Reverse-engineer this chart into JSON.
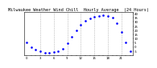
{
  "title": "Milwaukee Weather Wind Chill  Hourly Average  (24 Hours)",
  "hours": [
    0,
    1,
    2,
    3,
    4,
    5,
    6,
    7,
    8,
    9,
    10,
    11,
    12,
    13,
    14,
    15,
    16,
    17,
    18,
    19,
    20,
    21,
    22,
    23
  ],
  "wind_chill": [
    5,
    0,
    -3,
    -5,
    -7,
    -7,
    -6,
    -5,
    -2,
    4,
    12,
    20,
    27,
    31,
    34,
    36,
    37,
    38,
    37,
    35,
    28,
    18,
    5,
    -5
  ],
  "dot_color": "#0000ff",
  "bg_color": "#ffffff",
  "grid_color": "#999999",
  "ylim": [
    -10,
    42
  ],
  "xlim": [
    -0.5,
    23.5
  ],
  "grid_hours": [
    3,
    6,
    9,
    12,
    15,
    18,
    21
  ],
  "y_ticks": [
    -5,
    0,
    5,
    10,
    15,
    20,
    25,
    30,
    35,
    40
  ],
  "title_fontsize": 3.8,
  "tick_fontsize": 2.8
}
